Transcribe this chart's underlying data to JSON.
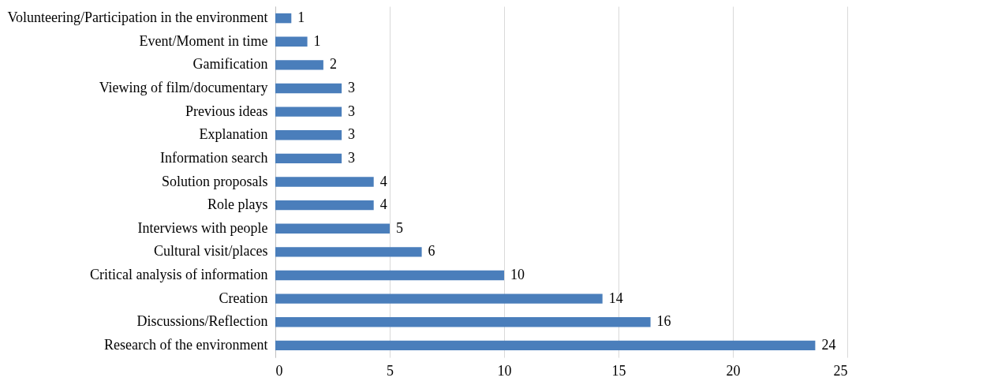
{
  "chart_data": {
    "type": "bar",
    "orientation": "horizontal",
    "categories": [
      "Volunteering/Participation in the environment",
      "Event/Moment in time",
      "Gamification",
      "Viewing of film/documentary",
      "Previous ideas",
      "Explanation",
      "Information search",
      "Solution proposals",
      "Role plays",
      "Interviews with people",
      "Cultural visit/places",
      "Critical analysis of information",
      "Creation",
      "Discussions/Reflection",
      "Research of the environment"
    ],
    "values": [
      0.7,
      1.4,
      2.1,
      2.9,
      2.9,
      2.9,
      2.9,
      4.3,
      4.3,
      5.0,
      6.4,
      10.0,
      14.3,
      16.4,
      23.6
    ],
    "value_labels": [
      "1",
      "1",
      "2",
      "3",
      "3",
      "3",
      "3",
      "4",
      "4",
      "5",
      "6",
      "10",
      "14",
      "16",
      "24"
    ],
    "color": "#4a7ebb",
    "xlim": [
      0,
      25
    ],
    "xticks": [
      0,
      5,
      10,
      15,
      20,
      25
    ],
    "grid": "x"
  }
}
